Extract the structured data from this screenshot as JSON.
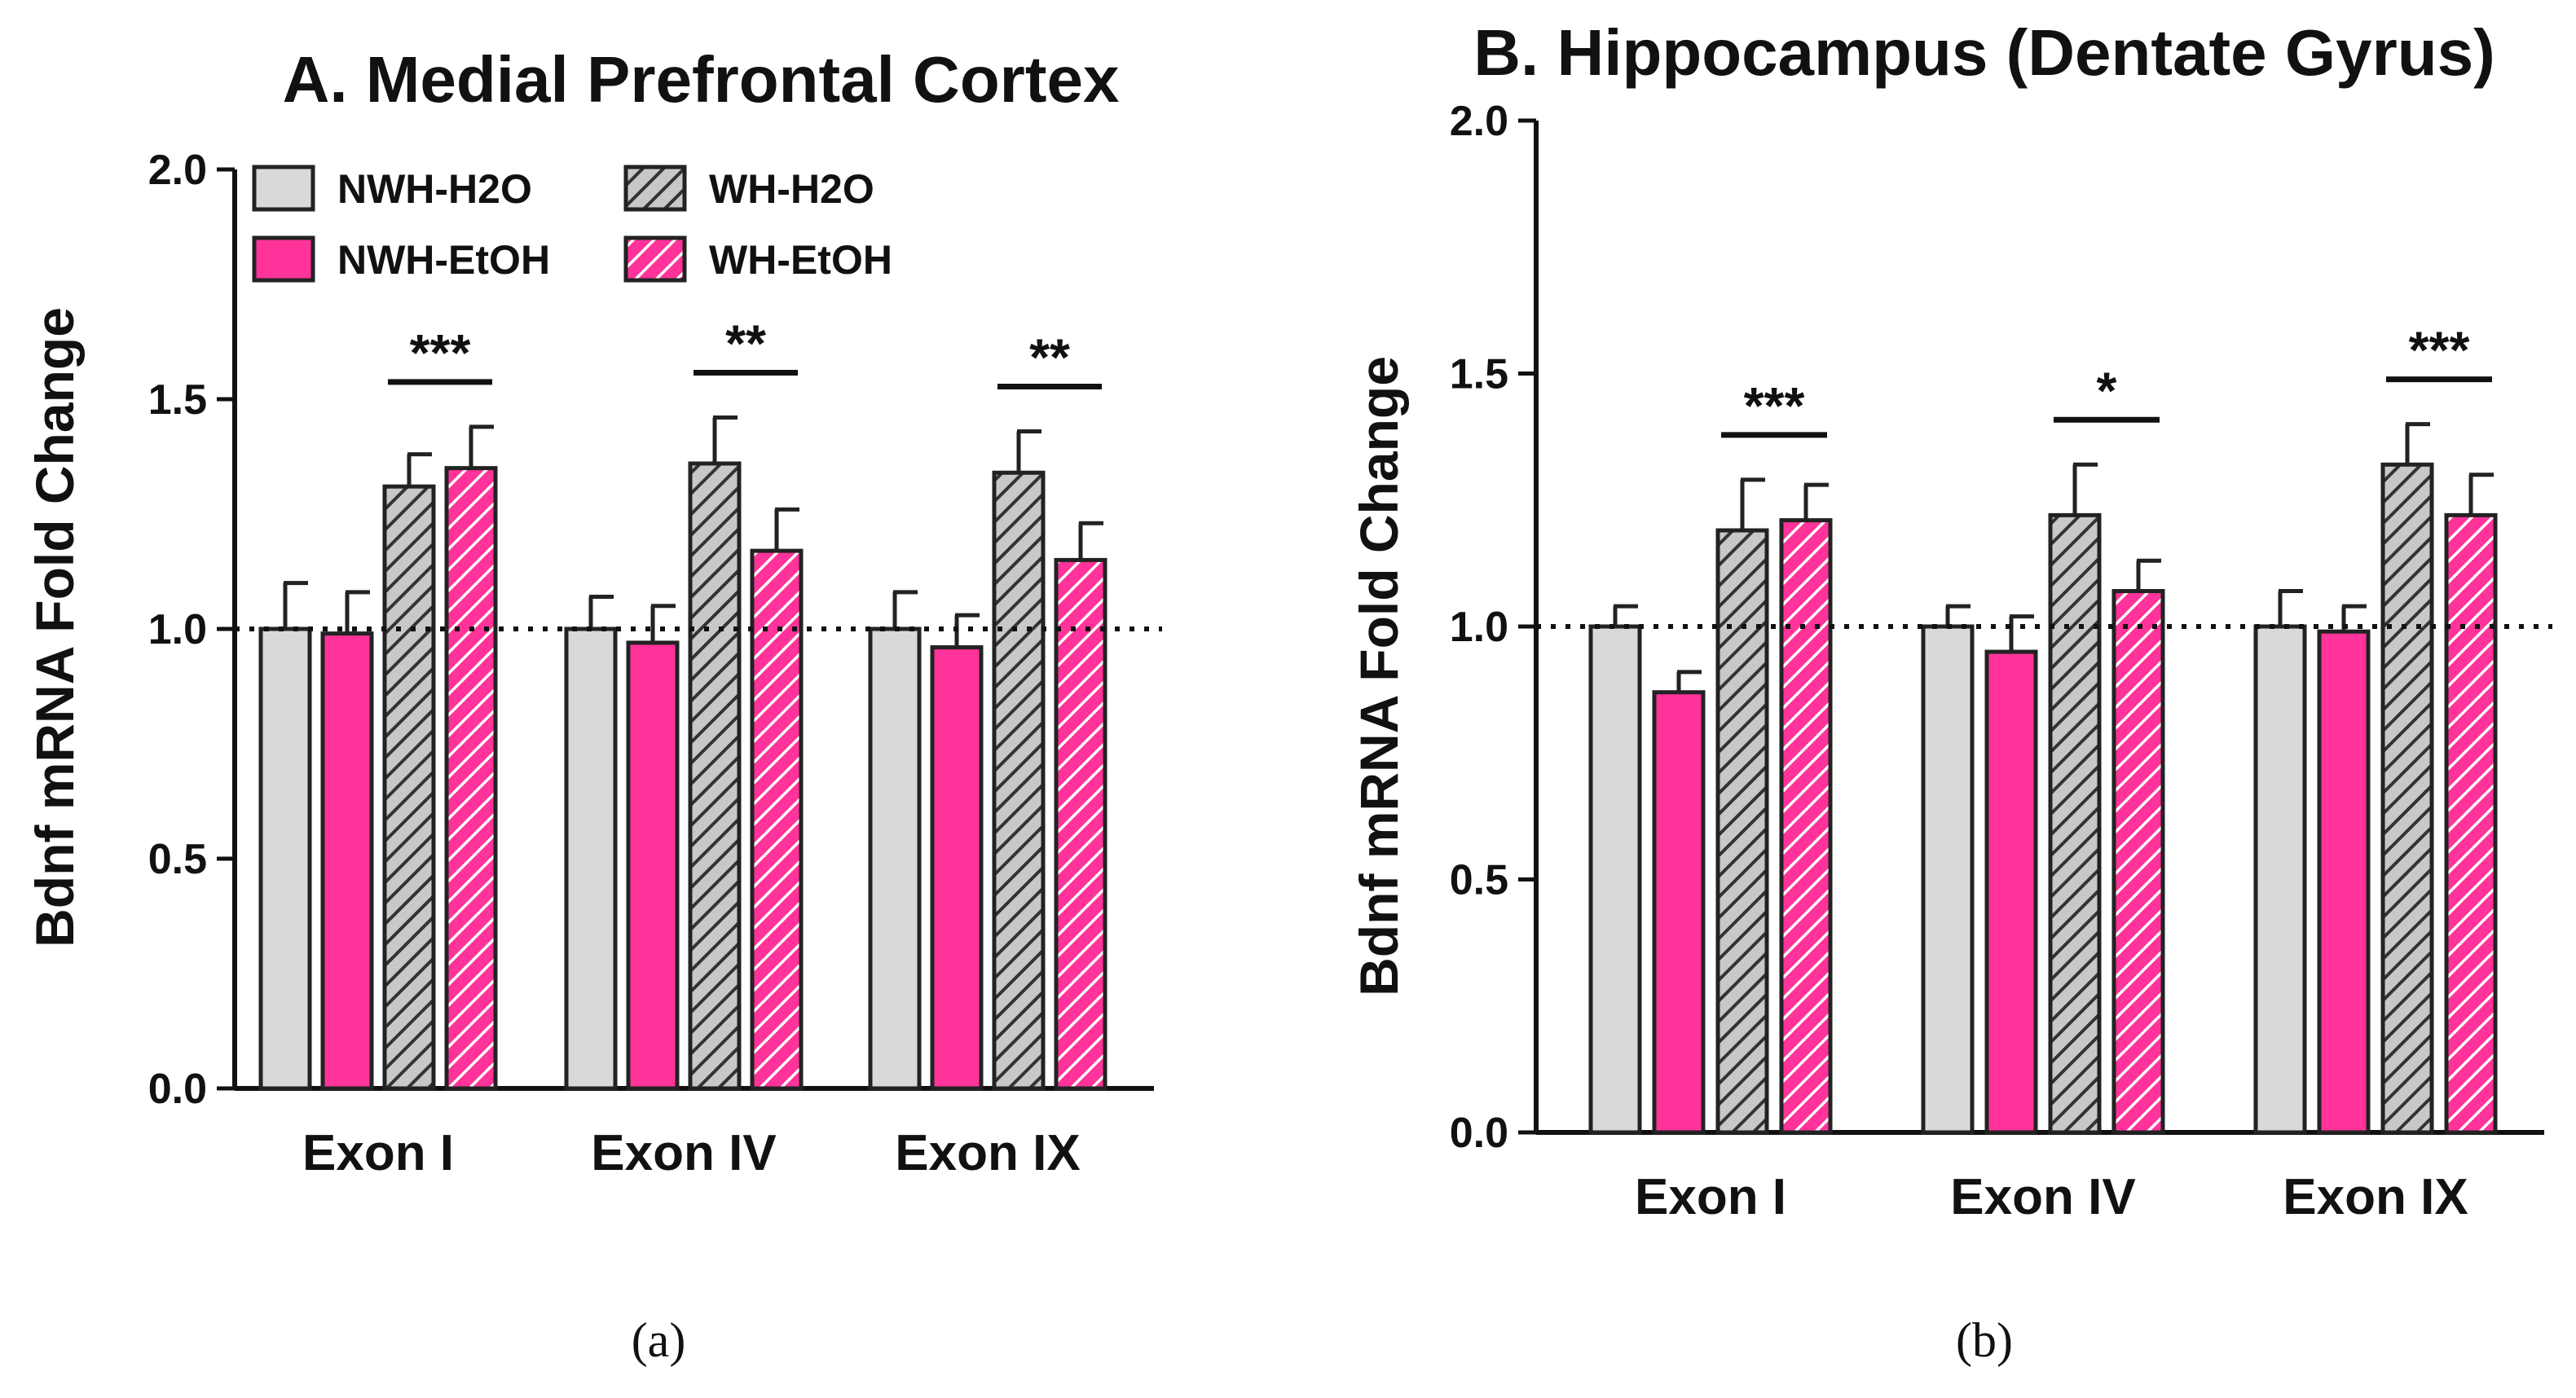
{
  "colors": {
    "nwh_h2o": "#d9d9d9",
    "nwh_etoh": "#ff3399",
    "wh_h2o_base": "#c8c8c8",
    "wh_h2o_hatch": "#333333",
    "wh_etoh_base": "#ff3399",
    "wh_etoh_hatch": "#ffffff",
    "outline": "#222222"
  },
  "captions": [
    "(a)",
    "(b)"
  ],
  "chart_data": [
    {
      "type": "bar",
      "title": "A.  Medial Prefrontal Cortex",
      "ylabel": "Bdnf mRNA Fold Change",
      "xlabel": "",
      "ylim": [
        0,
        2.0
      ],
      "yticks": [
        "0.0",
        "0.5",
        "1.0",
        "1.5",
        "2.0"
      ],
      "reference_line": 1.0,
      "legend": {
        "placement": "top-left",
        "entries": [
          "NWH-H2O",
          "NWH-EtOH",
          "WH-H2O",
          "WH-EtOH"
        ]
      },
      "categories": [
        "Exon I",
        "Exon IV",
        "Exon IX"
      ],
      "series": [
        {
          "name": "NWH-H2O",
          "values": [
            1.0,
            1.0,
            1.0
          ],
          "errors": [
            0.1,
            0.07,
            0.08
          ]
        },
        {
          "name": "NWH-EtOH",
          "values": [
            0.99,
            0.97,
            0.96
          ],
          "errors": [
            0.09,
            0.08,
            0.07
          ]
        },
        {
          "name": "WH-H2O",
          "values": [
            1.31,
            1.36,
            1.34
          ],
          "errors": [
            0.07,
            0.1,
            0.09
          ]
        },
        {
          "name": "WH-EtOH",
          "values": [
            1.35,
            1.17,
            1.15
          ],
          "errors": [
            0.09,
            0.09,
            0.08
          ]
        }
      ],
      "significance": [
        "***",
        "**",
        "**"
      ]
    },
    {
      "type": "bar",
      "title": "B. Hippocampus (Dentate Gyrus)",
      "ylabel": "Bdnf mRNA Fold Change",
      "xlabel": "",
      "ylim": [
        0,
        2.0
      ],
      "yticks": [
        "0.0",
        "0.5",
        "1.0",
        "1.5",
        "2.0"
      ],
      "reference_line": 1.0,
      "categories": [
        "Exon I",
        "Exon IV",
        "Exon IX"
      ],
      "series": [
        {
          "name": "NWH-H2O",
          "values": [
            1.0,
            1.0,
            1.0
          ],
          "errors": [
            0.04,
            0.04,
            0.07
          ]
        },
        {
          "name": "NWH-EtOH",
          "values": [
            0.87,
            0.95,
            0.99
          ],
          "errors": [
            0.04,
            0.07,
            0.05
          ]
        },
        {
          "name": "WH-H2O",
          "values": [
            1.19,
            1.22,
            1.32
          ],
          "errors": [
            0.1,
            0.1,
            0.08
          ]
        },
        {
          "name": "WH-EtOH",
          "values": [
            1.21,
            1.07,
            1.22
          ],
          "errors": [
            0.07,
            0.06,
            0.08
          ]
        }
      ],
      "significance": [
        "***",
        "*",
        "***"
      ]
    }
  ]
}
